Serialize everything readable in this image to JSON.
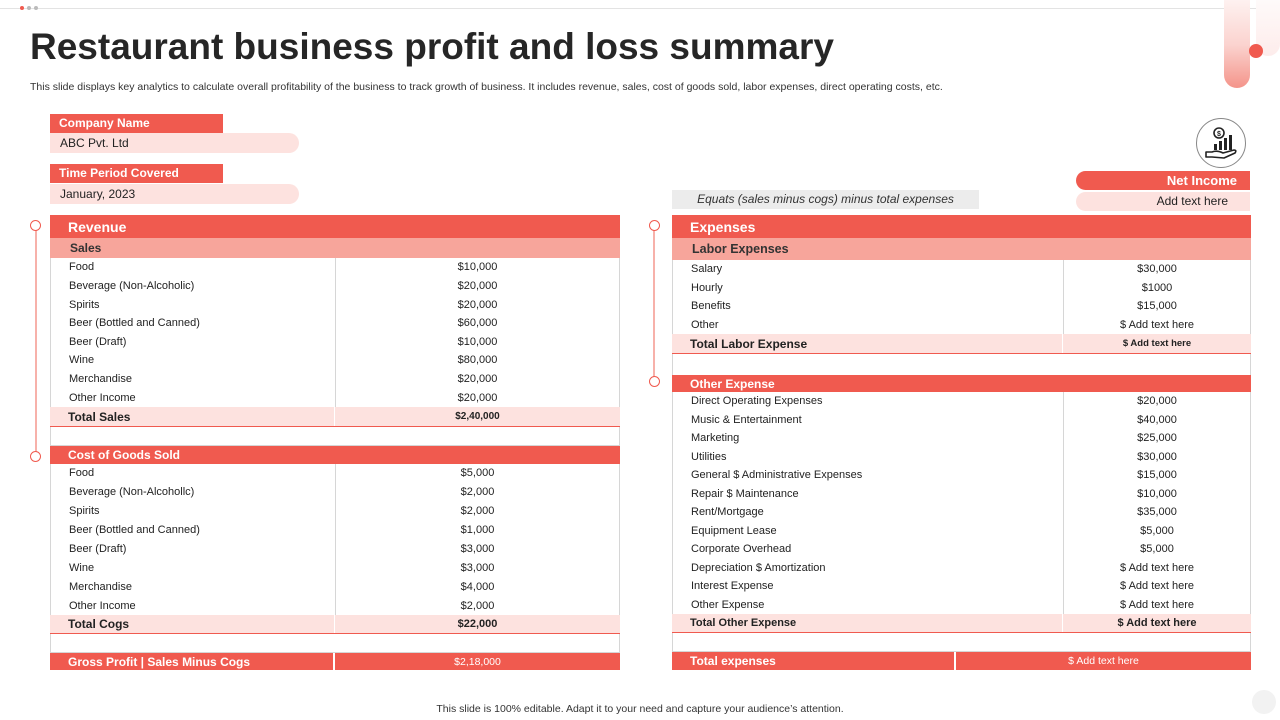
{
  "title": "Restaurant business profit and loss summary",
  "subtitle": "This slide displays key analytics to calculate overall profitability of the business to track growth of business. It includes revenue, sales, cost of goods sold, labor expenses, direct operating costs, etc.",
  "company": {
    "label": "Company Name",
    "value": "ABC Pvt. Ltd"
  },
  "period": {
    "label": "Time Period Covered",
    "value": "January, 2023"
  },
  "formula": "Equats (sales minus cogs) minus total expenses",
  "net_income": {
    "label": "Net Income",
    "value": "Add text here"
  },
  "revenue": {
    "title": "Revenue",
    "sales": {
      "title": "Sales",
      "rows": [
        [
          "Food",
          "$10,000"
        ],
        [
          "Beverage (Non-Alcoholic)",
          "$20,000"
        ],
        [
          "Spirits",
          "$20,000"
        ],
        [
          "Beer (Bottled and Canned)",
          "$60,000"
        ],
        [
          "Beer (Draft)",
          "$10,000"
        ],
        [
          "Wine",
          "$80,000"
        ],
        [
          "Merchandise",
          "$20,000"
        ],
        [
          "Other Income",
          "$20,000"
        ]
      ],
      "total_label": "Total Sales",
      "total_value": "$2,40,000"
    }
  },
  "cogs": {
    "title": "Cost of Goods Sold",
    "rows": [
      [
        "Food",
        "$5,000"
      ],
      [
        "Beverage (Non-Alcohollc)",
        "$2,000"
      ],
      [
        "Spirits",
        "$2,000"
      ],
      [
        "Beer (Bottled and Canned)",
        "$1,000"
      ],
      [
        "Beer (Draft)",
        "$3,000"
      ],
      [
        "Wine",
        "$3,000"
      ],
      [
        "Merchandise",
        "$4,000"
      ],
      [
        "Other Income",
        "$2,000"
      ]
    ],
    "total_label": "Total Cogs",
    "total_value": "$22,000"
  },
  "gross_profit": {
    "label": "Gross Profit | Sales Minus Cogs",
    "value": "$2,18,000"
  },
  "expenses": {
    "title": "Expenses",
    "labor": {
      "title": "Labor Expenses",
      "rows": [
        [
          "Salary",
          "$30,000"
        ],
        [
          "Hourly",
          "$1000"
        ],
        [
          "Benefits",
          "$15,000"
        ],
        [
          "Other",
          "$ Add text here"
        ]
      ],
      "total_label": "Total Labor Expense",
      "total_value": "$ Add text here"
    },
    "other": {
      "title": "Other Expense",
      "rows": [
        [
          "Direct Operating Expenses",
          "$20,000"
        ],
        [
          "Music & Entertainment",
          "$40,000"
        ],
        [
          "Marketing",
          "$25,000"
        ],
        [
          "Utilities",
          "$30,000"
        ],
        [
          "General $ Administrative Expenses",
          "$15,000"
        ],
        [
          "Repair $ Maintenance",
          "$10,000"
        ],
        [
          "Rent/Mortgage",
          "$35,000"
        ],
        [
          "Equipment Lease",
          "$5,000"
        ],
        [
          "Corporate Overhead",
          "$5,000"
        ],
        [
          "Depreciation $ Amortization",
          "$ Add text here"
        ],
        [
          "Interest Expense",
          "$ Add text here"
        ],
        [
          "Other Expense",
          "$ Add text here"
        ]
      ],
      "total_label": "Total Other Expense",
      "total_value": "$ Add text here"
    }
  },
  "total_expenses": {
    "label": "Total expenses",
    "value": "$ Add text here"
  },
  "footer": "This slide is 100% editable. Adapt it to your need and capture your audience’s attention.",
  "icons": {
    "net_income": "money-hand-growth-icon"
  },
  "colors": {
    "accent": "#f05a4f",
    "light": "#fde2df",
    "sub": "#f7a59b"
  }
}
